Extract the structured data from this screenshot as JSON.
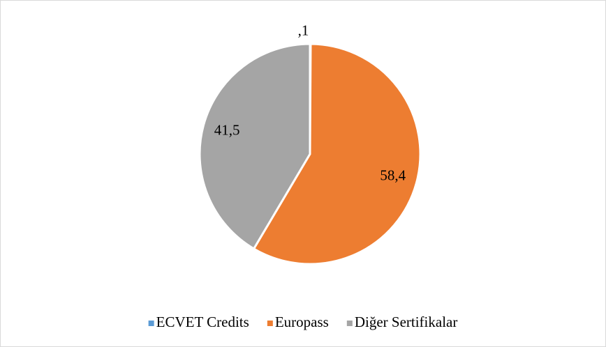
{
  "chart_data": {
    "type": "pie",
    "categories": [
      "ECVET Credits",
      "Europass",
      "Diğer Sertifikalar"
    ],
    "values": [
      0.1,
      58.4,
      41.5
    ],
    "value_labels": [
      ",1",
      "58,4",
      "41,5"
    ],
    "colors": [
      "#5b9bd5",
      "#ed7d31",
      "#a5a5a5"
    ],
    "legend": "bottom"
  }
}
